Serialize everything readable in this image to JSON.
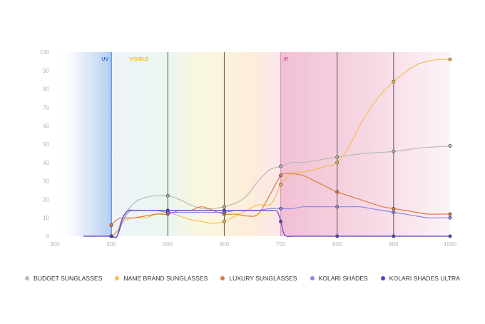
{
  "chart_data": {
    "type": "line",
    "xlim": [
      300,
      1000
    ],
    "ylim": [
      0,
      100
    ],
    "x_ticks": [
      300,
      400,
      500,
      600,
      700,
      800,
      900,
      1000
    ],
    "y_ticks": [
      0,
      10,
      20,
      30,
      40,
      50,
      60,
      70,
      80,
      90,
      100
    ],
    "x_tick_labels": [
      "300",
      "400",
      "500",
      "600",
      "700",
      "800",
      "900",
      "1000"
    ],
    "y_tick_labels": [
      "0",
      "10",
      "20",
      "30",
      "40",
      "50",
      "60",
      "70",
      "80",
      "90",
      "100"
    ],
    "grid": false,
    "legend_position": "bottom",
    "regions": [
      {
        "label": "UV",
        "start": 300,
        "end": 400,
        "color": "#2c6fd6"
      },
      {
        "label": "VISIBLE",
        "start": 400,
        "end": 700,
        "color": "#f3c21b"
      },
      {
        "label": "IR",
        "start": 700,
        "end": 1000,
        "color": "#e0679d"
      }
    ],
    "vertical_lines": [
      {
        "x": 400,
        "color": "#2c6fd6"
      },
      {
        "x": 500,
        "color": "#555555"
      },
      {
        "x": 600,
        "color": "#555555"
      },
      {
        "x": 700,
        "color": "#e58bb3"
      },
      {
        "x": 800,
        "color": "#555555"
      },
      {
        "x": 900,
        "color": "#555555"
      }
    ],
    "series": [
      {
        "name": "BUDGET SUNGLASSES",
        "color": "#b8b8b8",
        "x": [
          400,
          410,
          420,
          440,
          460,
          480,
          500,
          520,
          540,
          560,
          580,
          600,
          620,
          640,
          660,
          680,
          700,
          720,
          740,
          760,
          780,
          800,
          850,
          900,
          950,
          1000
        ],
        "y": [
          0,
          2,
          10,
          18,
          21,
          22,
          22,
          20,
          17,
          15,
          15,
          16,
          18,
          22,
          30,
          36,
          38,
          40,
          40,
          41,
          42,
          43,
          45,
          46,
          48,
          49
        ],
        "markers_x": [
          400,
          500,
          600,
          700,
          800,
          900,
          1000
        ],
        "markers_y": [
          0,
          22,
          16,
          38,
          43,
          46,
          49
        ]
      },
      {
        "name": "NAME BRAND SUNGLASSES",
        "color": "#f5bf4b",
        "x": [
          400,
          410,
          420,
          440,
          460,
          480,
          500,
          520,
          540,
          560,
          580,
          600,
          620,
          640,
          660,
          680,
          690,
          700,
          720,
          740,
          760,
          780,
          800,
          820,
          840,
          860,
          880,
          900,
          920,
          940,
          960,
          980,
          1000
        ],
        "y": [
          0,
          3,
          8,
          10,
          10,
          12,
          13,
          11,
          9,
          8,
          7,
          8,
          11,
          14,
          17,
          17,
          21,
          28,
          34,
          35,
          36,
          38,
          40,
          48,
          60,
          70,
          78,
          84,
          89,
          93,
          95,
          96,
          96
        ],
        "markers_x": [
          400,
          500,
          600,
          700,
          800,
          900,
          1000
        ],
        "markers_y": [
          0,
          13,
          8,
          28,
          40,
          84,
          96
        ]
      },
      {
        "name": "LUXURY SUNGLASSES",
        "color": "#e07a3f",
        "x": [
          400,
          410,
          420,
          440,
          460,
          480,
          500,
          520,
          540,
          560,
          580,
          600,
          620,
          640,
          660,
          680,
          700,
          710,
          720,
          740,
          760,
          780,
          800,
          820,
          840,
          860,
          880,
          900,
          920,
          940,
          960,
          980,
          1000
        ],
        "y": [
          6,
          9,
          10,
          10,
          11,
          12,
          12,
          14,
          14,
          16,
          14,
          12,
          12,
          11,
          12,
          22,
          33,
          34,
          34,
          33,
          30,
          27,
          24,
          22,
          20,
          18,
          16,
          15,
          14,
          13,
          12,
          12,
          12
        ],
        "markers_x": [
          400,
          500,
          600,
          700,
          800,
          900,
          1000
        ],
        "markers_y": [
          6,
          12,
          12,
          33,
          24,
          15,
          12
        ]
      },
      {
        "name": "KOLARI SHADES",
        "color": "#8b86e8",
        "x": [
          400,
          410,
          420,
          430,
          440,
          460,
          480,
          500,
          520,
          540,
          560,
          580,
          600,
          620,
          640,
          660,
          680,
          700,
          720,
          740,
          760,
          780,
          800,
          820,
          840,
          860,
          880,
          900,
          920,
          940,
          960,
          980,
          1000
        ],
        "y": [
          0,
          0,
          8,
          13,
          14,
          14,
          14,
          13,
          13,
          13,
          13,
          13,
          13,
          14,
          14,
          14,
          15,
          15,
          15,
          16,
          16,
          16,
          16,
          16,
          16,
          15,
          14,
          13,
          12,
          11,
          10,
          10,
          10
        ],
        "markers_x": [
          400,
          500,
          600,
          700,
          800,
          900,
          1000
        ],
        "markers_y": [
          0,
          13,
          13,
          15,
          16,
          13,
          10
        ]
      },
      {
        "name": "KOLARI SHADES ULTRA",
        "color": "#5c3ec8",
        "x": [
          350,
          380,
          400,
          410,
          420,
          430,
          440,
          460,
          480,
          500,
          520,
          540,
          560,
          580,
          600,
          620,
          640,
          660,
          680,
          690,
          695,
          700,
          705,
          710,
          720,
          740,
          760,
          780,
          800,
          850,
          900,
          950,
          1000
        ],
        "y": [
          0,
          0,
          0,
          0,
          10,
          14,
          14,
          14,
          14,
          14,
          14,
          14,
          14,
          14,
          14,
          14,
          14,
          14,
          14,
          14,
          13,
          8,
          2,
          0,
          0,
          0,
          0,
          0,
          0,
          0,
          0,
          0,
          0
        ],
        "markers_x": [
          400,
          500,
          600,
          700,
          800,
          900,
          1000
        ],
        "markers_y": [
          0,
          14,
          14,
          8,
          0,
          0,
          0
        ]
      }
    ]
  }
}
